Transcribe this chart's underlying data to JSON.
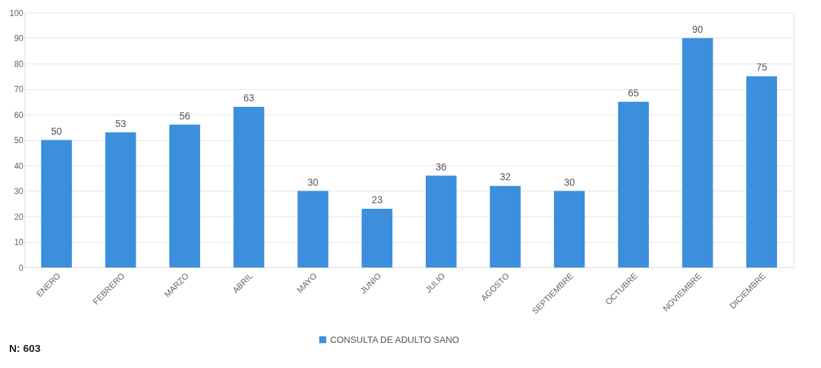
{
  "chart_data": {
    "type": "bar",
    "categories": [
      "ENERO",
      "FEBRERO",
      "MARZO",
      "ABRIL",
      "MAYO",
      "JUNIO",
      "JULIO",
      "AGOSTO",
      "SEPTIEMBRE",
      "OCTUBRE",
      "NOVIEMBRE",
      "DICIEMBRE"
    ],
    "series": [
      {
        "name": "CONSULTA DE ADULTO SANO",
        "color": "#3b8fdc",
        "values": [
          50,
          53,
          56,
          63,
          30,
          23,
          36,
          32,
          30,
          65,
          90,
          75
        ]
      }
    ],
    "ylim": [
      0,
      100
    ],
    "yticks": [
      0,
      10,
      20,
      30,
      40,
      50,
      60,
      70,
      80,
      90,
      100
    ],
    "grid": "y",
    "legend": "bottom",
    "data_labels": true,
    "annotations": [
      "N: 603"
    ]
  }
}
